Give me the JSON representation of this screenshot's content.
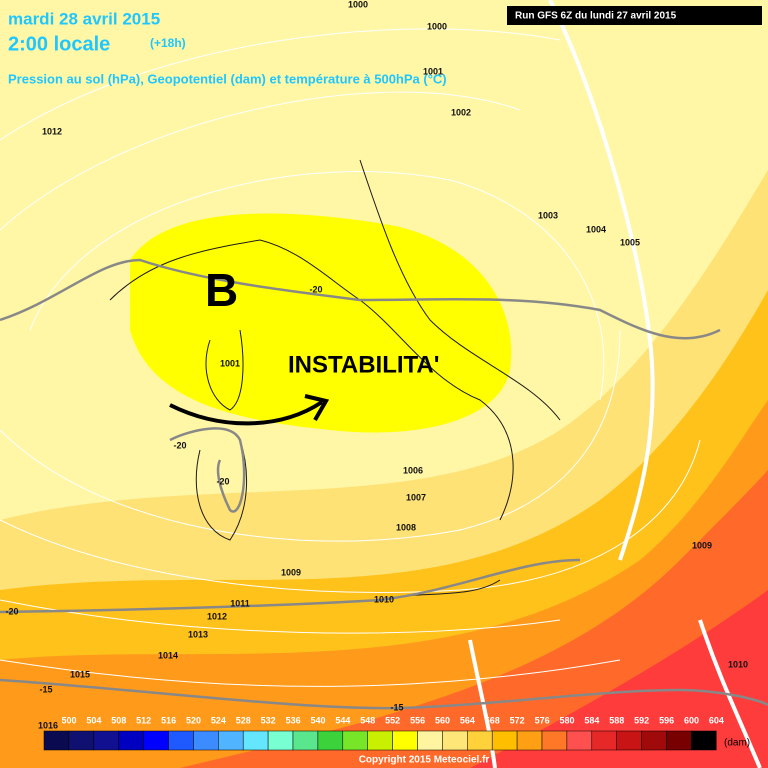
{
  "header": {
    "date": "mardi 28 avril 2015",
    "time": "2:00 locale",
    "lead": "(+18h)",
    "subtitle": "Pression au sol (hPa), Geopotentiel (dam) et température à 500hPa (°C)",
    "run": "Run GFS 6Z du lundi 27 avril 2015"
  },
  "annotations": {
    "low": "B",
    "text": "INSTABILITA'"
  },
  "isobar_labels": [
    "1000",
    "1000",
    "1001",
    "1002",
    "1012",
    "1003",
    "1004",
    "1005",
    "1001",
    "1006",
    "1007",
    "1008",
    "1009",
    "1009",
    "1010",
    "1011",
    "1012",
    "1013",
    "1014",
    "1015",
    "1016",
    "1010"
  ],
  "temperature_labels": [
    "-20",
    "-20",
    "-20",
    "-20",
    "-15",
    "-15"
  ],
  "legend": {
    "values": [
      500,
      504,
      508,
      512,
      516,
      520,
      524,
      528,
      532,
      536,
      540,
      544,
      548,
      552,
      556,
      560,
      564,
      568,
      572,
      576,
      580,
      584,
      588,
      592,
      596,
      600,
      604
    ],
    "colors": [
      "#0a0a50",
      "#101070",
      "#101090",
      "#0000c0",
      "#0000ff",
      "#1e5aff",
      "#3c8cff",
      "#50b4ff",
      "#64e6ff",
      "#78ffd2",
      "#5ae68c",
      "#3cd23c",
      "#78e628",
      "#c8f000",
      "#ffff00",
      "#fff5a0",
      "#ffe678",
      "#ffd23c",
      "#ffbe00",
      "#ffa014",
      "#ff7828",
      "#ff5050",
      "#e62828",
      "#c81414",
      "#a00a0a",
      "#780000",
      "#000000"
    ],
    "unit": "(dam)"
  },
  "footer": "Copyright 2015 Meteociel.fr"
}
